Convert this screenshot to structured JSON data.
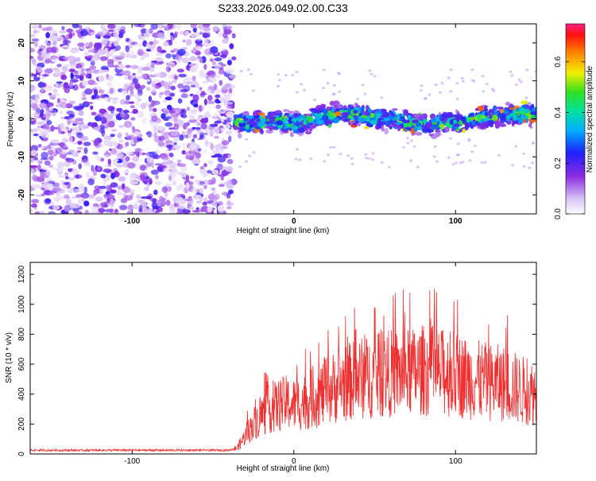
{
  "title": "S233.2026.049.02.00.C33",
  "chart_data": [
    {
      "type": "heatmap",
      "xlabel": "Height of straight line (km)",
      "ylabel": "Frequency (Hz)",
      "xlim": [
        -163,
        150
      ],
      "ylim": [
        -25,
        25
      ],
      "xticks": [
        -100,
        0,
        100
      ],
      "xtick_labels": [
        "-100",
        "0",
        "100"
      ],
      "yticks": [
        -20,
        -10,
        0,
        10,
        20
      ],
      "ytick_labels": [
        "-20",
        "-10",
        "0",
        "10",
        "20"
      ],
      "colorbar": {
        "label": "Normalized spectral amplitude",
        "range": [
          0,
          0.75
        ],
        "ticks": [
          0,
          0.2,
          0.4,
          0.6
        ],
        "tick_labels": [
          "0.0",
          "0.2",
          "0.4",
          "0.6"
        ]
      },
      "description_regions": [
        {
          "x_range": [
            -163,
            -37
          ],
          "freq_range": [
            -25,
            25
          ],
          "level": "low broadband noise, values ~0.05-0.2"
        },
        {
          "x_range": [
            -37,
            150
          ],
          "freq_range": [
            -5,
            5
          ],
          "level": "signal band centered near 0 Hz, values up to ~0.7"
        }
      ]
    },
    {
      "type": "line",
      "xlabel": "Height of straight line (km)",
      "ylabel": "SNR (10 * v/v)",
      "xlim": [
        -163,
        150
      ],
      "ylim": [
        0,
        1280
      ],
      "xticks": [
        -100,
        0,
        100
      ],
      "xtick_labels": [
        "-100",
        "0",
        "100"
      ],
      "yticks": [
        0,
        200,
        400,
        600,
        800,
        1000,
        1200
      ],
      "ytick_labels": [
        "0",
        "200",
        "400",
        "600",
        "800",
        "1000",
        "1200"
      ],
      "color": "#f03030",
      "series": [
        {
          "name": "SNR",
          "x": [
            -163,
            -140,
            -120,
            -100,
            -80,
            -60,
            -40,
            -35,
            -30,
            -25,
            -20,
            -15,
            -10,
            -5,
            0,
            10,
            20,
            30,
            40,
            50,
            60,
            70,
            80,
            90,
            100,
            110,
            120,
            130,
            140,
            150
          ],
          "y": [
            25,
            25,
            25,
            25,
            25,
            25,
            25,
            40,
            120,
            200,
            260,
            300,
            320,
            340,
            330,
            360,
            420,
            470,
            500,
            520,
            540,
            540,
            560,
            540,
            530,
            500,
            480,
            470,
            430,
            400
          ]
        }
      ]
    }
  ]
}
